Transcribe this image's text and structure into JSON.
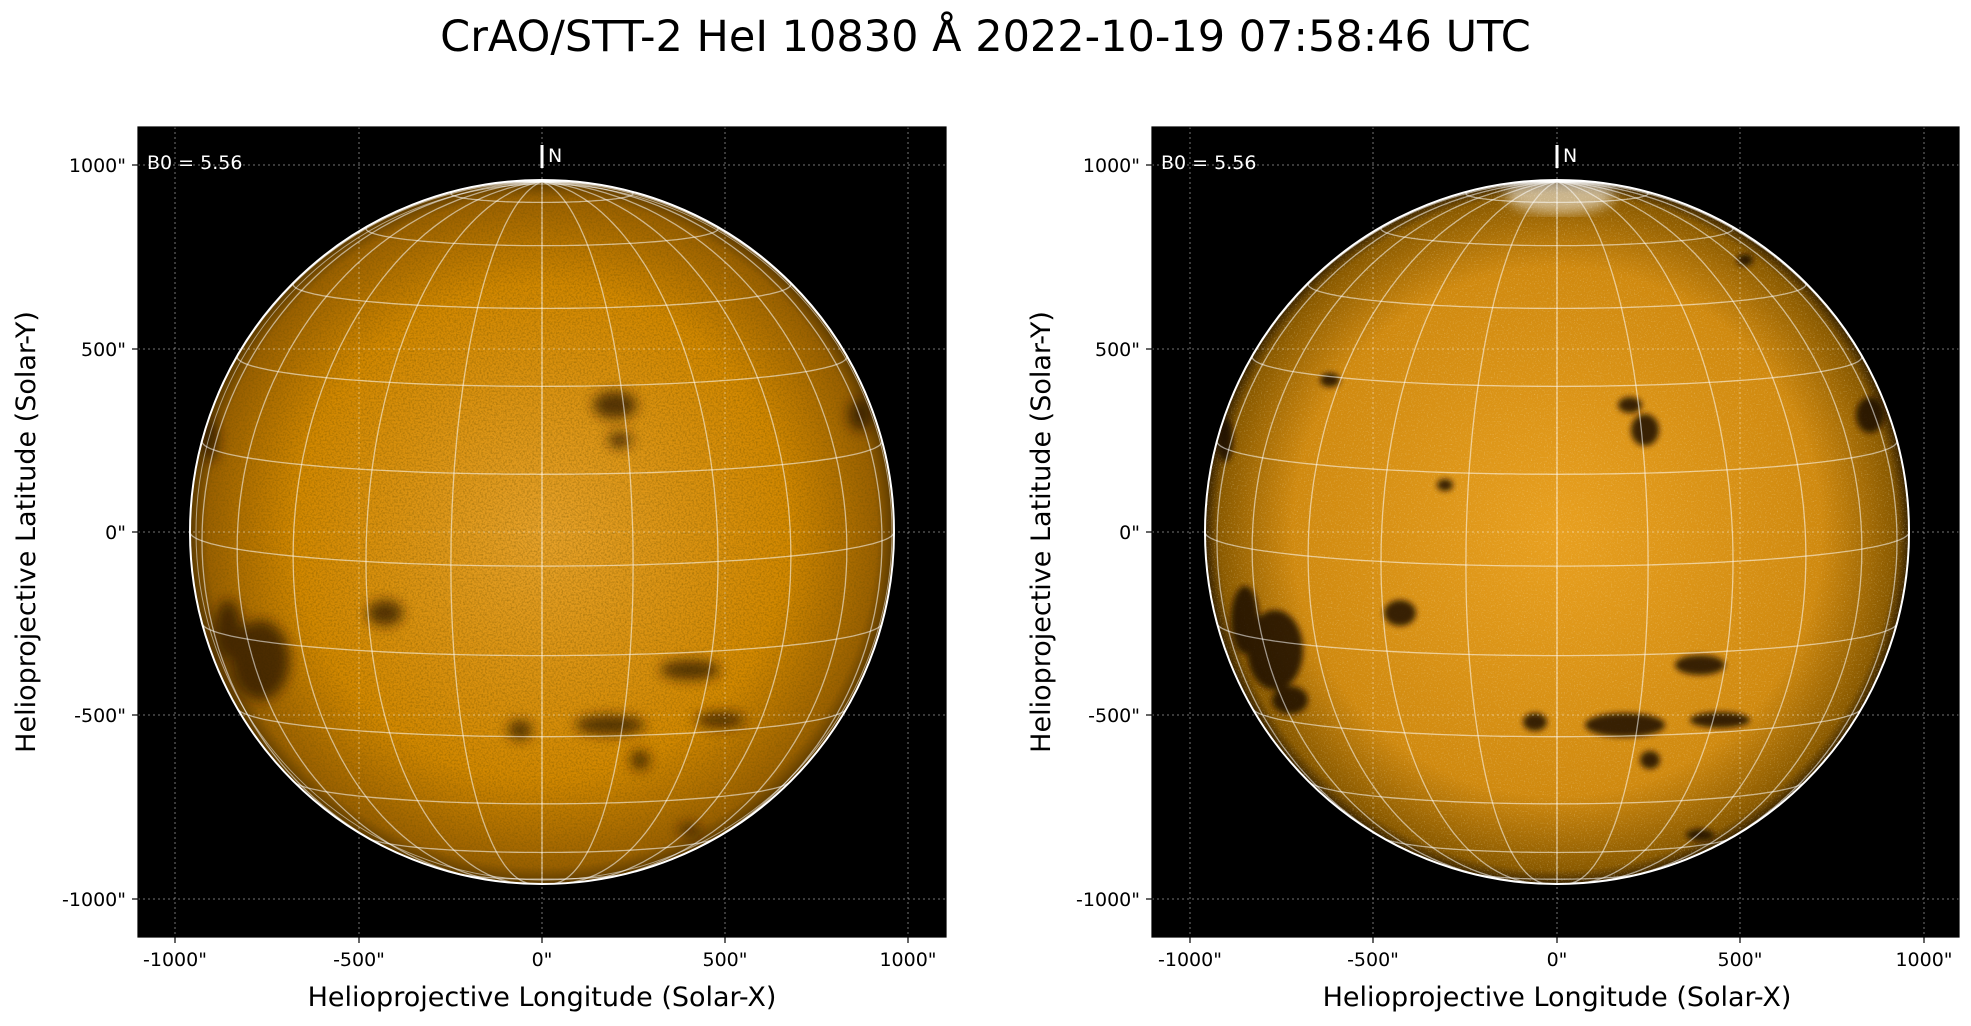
{
  "figure": {
    "title": "CrAO/STT-2 HeI 10830 Å 2022-10-19 07:58:46 UTC"
  },
  "panels": [
    {
      "id": "left",
      "b0_label": "B0 = 5.56",
      "north_label": "N",
      "xlabel": "Helioprojective Longitude (Solar-X)",
      "ylabel": "Helioprojective Latitude (Solar-Y)",
      "xticks": [
        "-1000\"",
        "-500\"",
        "0\"",
        "500\"",
        "1000\""
      ],
      "yticks": [
        "1000\"",
        "500\"",
        "0\"",
        "-500\"",
        "-1000\""
      ],
      "style": "smooth"
    },
    {
      "id": "right",
      "b0_label": "B0 = 5.56",
      "north_label": "N",
      "xlabel": "Helioprojective Longitude (Solar-X)",
      "ylabel": "Helioprojective Latitude (Solar-Y)",
      "xticks": [
        "-1000\"",
        "-500\"",
        "0\"",
        "500\"",
        "1000\""
      ],
      "yticks": [
        "1000\"",
        "500\"",
        "0\"",
        "-500\"",
        "-1000\""
      ],
      "style": "enhanced"
    }
  ],
  "colors": {
    "disk_base": "#D98A00",
    "disk_bright": "#F2B030",
    "background": "#000000",
    "grid": "#ffffff"
  }
}
